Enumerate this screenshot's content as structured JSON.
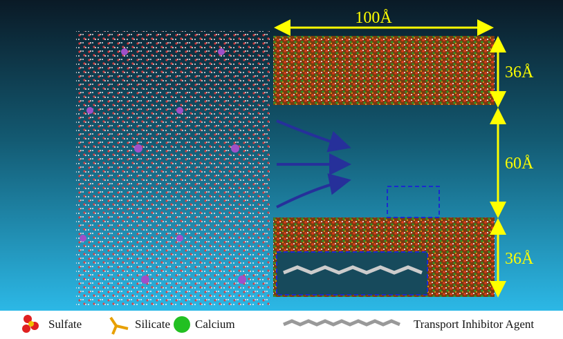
{
  "dimensions": {
    "width": "100Å",
    "top_slab": "36Å",
    "gap": "60Å",
    "bottom_slab": "36Å"
  },
  "legend": [
    "Sulfate",
    "Silicate",
    "Calcium",
    "Transport Inhibitor Agent"
  ]
}
